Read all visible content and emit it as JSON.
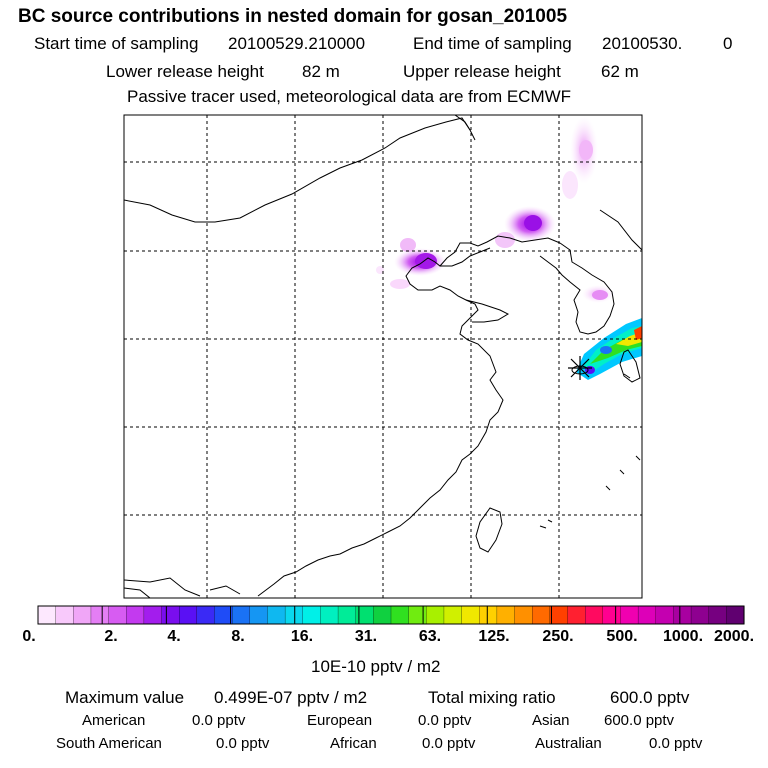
{
  "header": {
    "title": "BC  source contributions in nested domain for gosan_201005",
    "start_label": "Start time of sampling",
    "start_value": "20100529.210000",
    "end_label": "End time of sampling",
    "end_value": "20100530.",
    "end_suffix": "0",
    "lower_label": "Lower release height",
    "lower_value": "82 m",
    "upper_label": "Upper release height",
    "upper_value": "62 m",
    "note": "Passive tracer used, meteorological data are from ECMWF"
  },
  "colorbar": {
    "ticks": [
      "0.",
      "2.",
      "4.",
      "8.",
      "16.",
      "31.",
      "63.",
      "125.",
      "250.",
      "500.",
      "1000.",
      "2000."
    ],
    "unit": "10E-10 pptv / m2",
    "colors": [
      "#fde8fe",
      "#f8c9fb",
      "#f0a6f7",
      "#e47ef4",
      "#d75cf2",
      "#c33aef",
      "#a31ded",
      "#7a0eee",
      "#5a10f4",
      "#3a2af5",
      "#1f4cf7",
      "#1a72f5",
      "#1596f3",
      "#0fb8f0",
      "#0ad8ee",
      "#00f0e8",
      "#00f0c0",
      "#00ec98",
      "#00e070",
      "#10d040",
      "#30e020",
      "#70ec10",
      "#a8f000",
      "#d0f000",
      "#f0e800",
      "#ffd000",
      "#ffb000",
      "#ff9000",
      "#ff6a00",
      "#ff4000",
      "#ff2030",
      "#ff0a60",
      "#ff0090",
      "#f000b0",
      "#dd00b8",
      "#c400b0",
      "#a800a0",
      "#8e0090",
      "#760080",
      "#600070"
    ]
  },
  "footer": {
    "max_label": "Maximum value",
    "max_value": "0.499E-07 pptv / m2",
    "total_label": "Total mixing ratio",
    "total_value": "600.0 pptv",
    "american_label": "American",
    "american_value": "0.0 pptv",
    "european_label": "European",
    "european_value": "0.0 pptv",
    "asian_label": "Asian",
    "asian_value": "600.0 pptv",
    "south_american_label": "South American",
    "south_american_value": "0.0 pptv",
    "african_label": "African",
    "african_value": "0.0 pptv",
    "australian_label": "Australian",
    "australian_value": "0.0 pptv"
  }
}
